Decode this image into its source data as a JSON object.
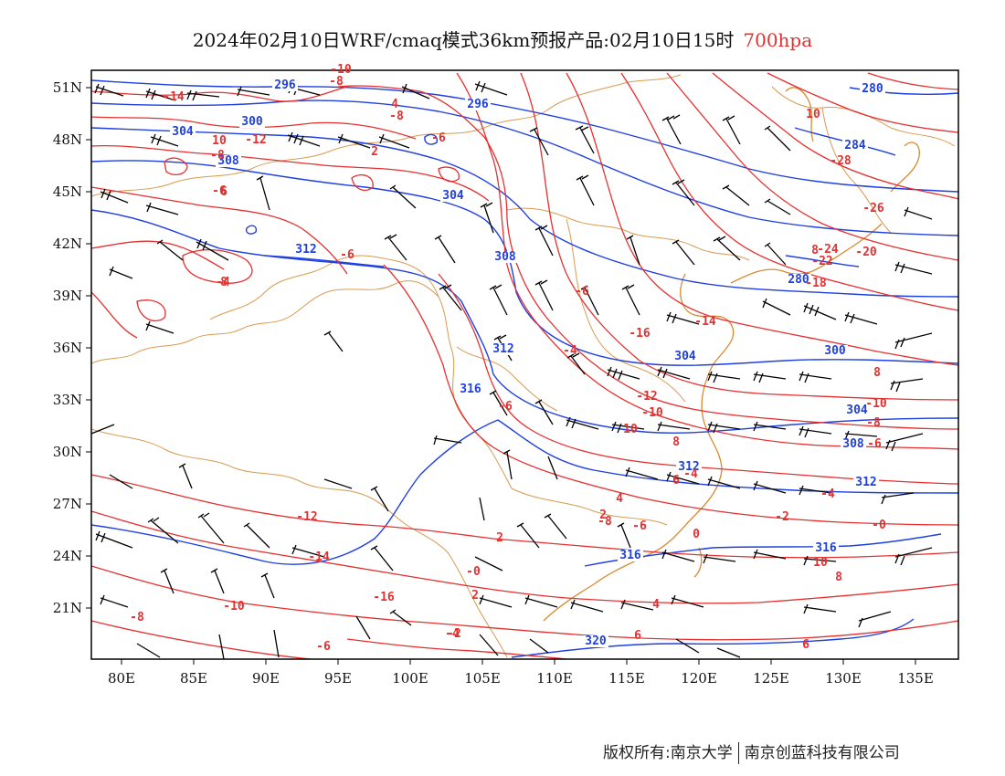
{
  "title": {
    "text": "2024年02月10日WRF/cmaq模式36km预报产品:02月10日15时",
    "level": "700hpa",
    "level_color": "#e53030"
  },
  "colors": {
    "temperature": "#e53030",
    "height": "#1f3fe0",
    "coastline": "#d88a30",
    "border": "#d89a50",
    "wind": "#000000"
  },
  "axes": {
    "lon_labels": [
      "80E",
      "85E",
      "90E",
      "95E",
      "100E",
      "105E",
      "110E",
      "115E",
      "120E",
      "125E",
      "130E",
      "135E"
    ],
    "lat_labels": [
      "51N",
      "48N",
      "45N",
      "42N",
      "39N",
      "36N",
      "33N",
      "30N",
      "27N",
      "24N",
      "21N"
    ]
  },
  "height_labels": [
    "296",
    "296",
    "300",
    "304",
    "308",
    "304",
    "312",
    "308",
    "312",
    "316",
    "304",
    "300",
    "304",
    "308",
    "312",
    "316",
    "316",
    "320",
    "280",
    "284",
    "312",
    "280"
  ],
  "temp_labels": [
    "-10",
    "-8",
    "-14",
    "-8",
    "-6",
    "10",
    "-12",
    "-8",
    "-6",
    "-6",
    "-4",
    "-6",
    "-4",
    "-10",
    "-16",
    "-14",
    "-6",
    "-12",
    "-10",
    "-8",
    "-6",
    "-4",
    "-2",
    "-0",
    "0",
    "2",
    "2",
    "4",
    "6",
    "8",
    "8",
    "8",
    "10",
    "-28",
    "-26",
    "-24",
    "-20",
    "-22",
    "-18",
    "-16",
    "-14",
    "-12",
    "-10",
    "-8",
    "-6",
    "-4",
    "-2",
    "-0",
    "2",
    "4",
    "6",
    "6",
    "8",
    "10",
    "2",
    "4",
    "6",
    "8",
    "10",
    "-4",
    "-6",
    "-8"
  ],
  "copyright": {
    "left": "版权所有:南京大学",
    "right": "南京创蓝科技有限公司"
  }
}
